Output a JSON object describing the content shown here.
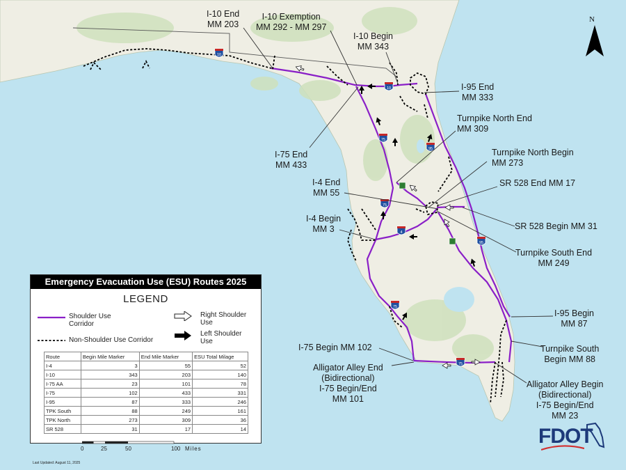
{
  "map": {
    "north_label": "N",
    "colors": {
      "water": "#bfe3f0",
      "land": "#efeee4",
      "green": "#cfe1bd",
      "shoulder_corridor": "#8a1fc7",
      "non_shoulder": "#000000",
      "interstate_shield": "#1f4fa0"
    },
    "callouts": {
      "i10_end": "I-10 End\nMM 203",
      "i10_exemption": "I-10 Exemption\nMM 292 - MM 297",
      "i10_begin": "I-10 Begin\nMM 343",
      "i95_end": "I-95 End\nMM 333",
      "turnpike_north_end": "Turnpike North End\nMM 309",
      "i75_end": "I-75 End\nMM 433",
      "turnpike_north_begin": "Turnpike North Begin\nMM 273",
      "i4_end": "I-4 End\nMM 55",
      "sr528_end": "SR 528 End MM 17",
      "sr528_begin": "SR 528 Begin MM 31",
      "i4_begin": "I-4 Begin\nMM 3",
      "turnpike_south_end": "Turnpike South End\nMM 249",
      "i95_begin": "I-95 Begin\nMM 87",
      "i75_begin": "I-75 Begin MM 102",
      "turnpike_south_begin": "Turnpike South\nBegin MM 88",
      "alligator_alley_end": "Alligator Alley End\n(Bidirectional)\nI-75 Begin/End\nMM 101",
      "alligator_alley_begin": "Alligator Alley Begin\n(Bidirectional)\nI-75 Begin/End\nMM 23"
    },
    "shields": [
      "10",
      "10",
      "75",
      "95",
      "75",
      "4",
      "95",
      "75",
      "75"
    ]
  },
  "legend": {
    "title": "Emergency Evacuation Use (ESU) Routes 2025",
    "heading": "LEGEND",
    "shoulder_use": "Shoulder Use\nCorridor",
    "non_shoulder_use": "Non-Shoulder Use Corridor",
    "right_shoulder": "Right Shoulder\nUse",
    "left_shoulder": "Left Shoulder\nUse",
    "table": {
      "headers": [
        "Route",
        "Begin Mile Marker",
        "End Mile Marker",
        "ESU Total Milage"
      ],
      "rows": [
        [
          "I-4",
          "3",
          "55",
          "52"
        ],
        [
          "I-10",
          "343",
          "203",
          "140"
        ],
        [
          "I-75 AA",
          "23",
          "101",
          "78"
        ],
        [
          "I-75",
          "102",
          "433",
          "331"
        ],
        [
          "I-95",
          "87",
          "333",
          "246"
        ],
        [
          "TPK South",
          "88",
          "249",
          "161"
        ],
        [
          "TPK North",
          "273",
          "309",
          "36"
        ],
        [
          "SR 528",
          "31",
          "17",
          "14"
        ]
      ]
    }
  },
  "scale": {
    "ticks": [
      "0",
      "25",
      "50",
      "100"
    ],
    "unit": "Miles"
  },
  "last_updated": "Last Updated: August 11, 2025",
  "logo": "FDOT"
}
